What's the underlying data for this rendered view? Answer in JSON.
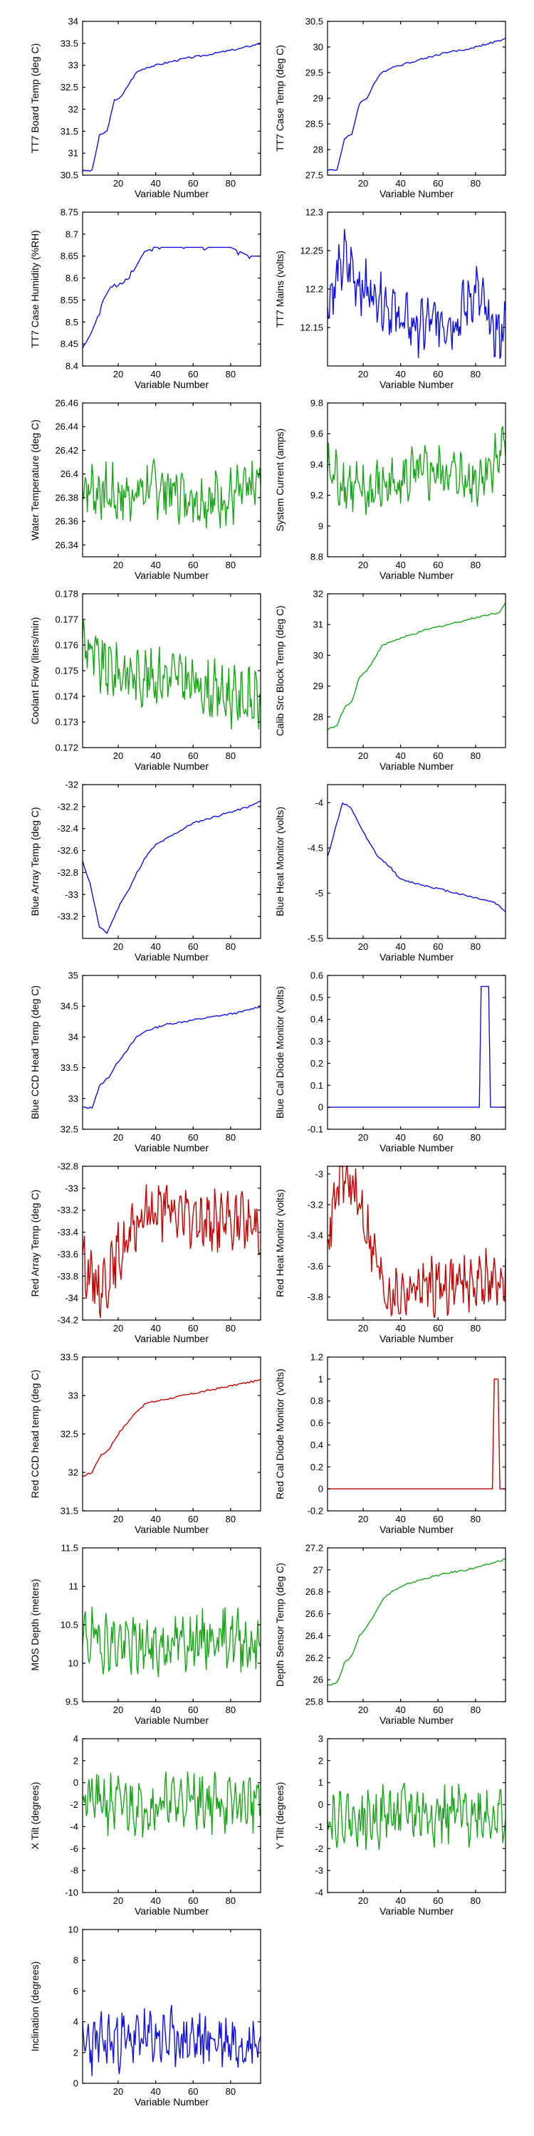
{
  "figure": {
    "colors": {
      "blue": "#1010e6",
      "green": "#1aa51a",
      "red": "#c40000",
      "axis": "#000000"
    }
  },
  "chart_data": [
    {
      "type": "line",
      "ylabel": "TT7 Board Temp (deg C)",
      "xlabel": "Variable Number",
      "xlim": [
        1,
        96
      ],
      "ylim": [
        30.5,
        34
      ],
      "xticks": [
        20,
        40,
        60,
        80
      ],
      "yticks": [
        "30.5",
        "31",
        "31.5",
        "32",
        "32.5",
        "33",
        "33.5",
        "34"
      ],
      "color": "blue",
      "shape": "sawrise",
      "series": [
        {
          "x": [
            1,
            6,
            10,
            14,
            18,
            22,
            26,
            30,
            35,
            45,
            55,
            65,
            75,
            85,
            96
          ],
          "y": [
            30.6,
            30.6,
            31.4,
            31.5,
            32.2,
            32.3,
            32.6,
            32.85,
            32.95,
            33.05,
            33.15,
            33.22,
            33.3,
            33.38,
            33.5
          ]
        }
      ]
    },
    {
      "type": "line",
      "ylabel": "TT7 Case Temp (deg C)",
      "xlabel": "Variable Number",
      "xlim": [
        1,
        96
      ],
      "ylim": [
        27.5,
        30.5
      ],
      "xticks": [
        20,
        40,
        60,
        80
      ],
      "yticks": [
        "27.5",
        "28",
        "28.5",
        "29",
        "29.5",
        "30",
        "30.5"
      ],
      "color": "blue",
      "shape": "sawrise",
      "series": [
        {
          "x": [
            1,
            6,
            10,
            14,
            18,
            22,
            26,
            30,
            35,
            45,
            55,
            65,
            75,
            85,
            96
          ],
          "y": [
            27.6,
            27.6,
            28.2,
            28.3,
            28.9,
            29.0,
            29.3,
            29.5,
            29.6,
            29.7,
            29.8,
            29.9,
            29.95,
            30.05,
            30.15
          ]
        }
      ]
    },
    {
      "type": "line",
      "ylabel": "TT7 Case Humidity (%RH)",
      "xlabel": "Variable Number",
      "xlim": [
        1,
        96
      ],
      "ylim": [
        8.4,
        8.75
      ],
      "xticks": [
        20,
        40,
        60,
        80
      ],
      "yticks": [
        "8.4",
        "8.45",
        "8.5",
        "8.55",
        "8.6",
        "8.65",
        "8.7",
        "8.75"
      ],
      "color": "blue",
      "shape": "steps",
      "series": [
        {
          "x": [
            1,
            5,
            8,
            12,
            16,
            20,
            26,
            30,
            34,
            40,
            50,
            60,
            70,
            80,
            90,
            96
          ],
          "y": [
            8.44,
            8.47,
            8.5,
            8.55,
            8.58,
            8.58,
            8.6,
            8.63,
            8.66,
            8.67,
            8.67,
            8.67,
            8.67,
            8.67,
            8.65,
            8.65
          ]
        }
      ]
    },
    {
      "type": "line",
      "ylabel": "TT7 Mains  (volts)",
      "xlabel": "Variable Number",
      "xlim": [
        1,
        96
      ],
      "ylim": [
        12.1,
        12.3
      ],
      "xticks": [
        20,
        40,
        60,
        80
      ],
      "yticks": [
        "12.15",
        "12.2",
        "12.25",
        "12.3"
      ],
      "color": "blue",
      "shape": "noisy",
      "series": [
        {
          "x": [
            1,
            10,
            20,
            30,
            40,
            50,
            60,
            70,
            80,
            90,
            96
          ],
          "y": [
            12.18,
            12.24,
            12.2,
            12.19,
            12.16,
            12.15,
            12.16,
            12.16,
            12.2,
            12.14,
            12.15
          ]
        }
      ]
    },
    {
      "type": "line",
      "ylabel": "Water Temperature (deg C)",
      "xlabel": "Variable Number",
      "xlim": [
        1,
        96
      ],
      "ylim": [
        26.33,
        26.46
      ],
      "xticks": [
        20,
        40,
        60,
        80
      ],
      "yticks": [
        "26.34",
        "26.36",
        "26.38",
        "26.4",
        "26.42",
        "26.44",
        "26.46"
      ],
      "color": "green",
      "shape": "noisy",
      "series": [
        {
          "x": [
            1,
            20,
            40,
            60,
            80,
            96
          ],
          "y": [
            26.39,
            26.38,
            26.39,
            26.38,
            26.38,
            26.39
          ]
        }
      ]
    },
    {
      "type": "line",
      "ylabel": "System Current (amps)",
      "xlabel": "Variable Number",
      "xlim": [
        1,
        96
      ],
      "ylim": [
        8.8,
        9.8
      ],
      "xticks": [
        20,
        40,
        60,
        80
      ],
      "yticks": [
        "8.8",
        "9",
        "9.2",
        "9.4",
        "9.6",
        "9.8"
      ],
      "color": "green",
      "shape": "noisy",
      "series": [
        {
          "x": [
            1,
            20,
            40,
            60,
            80,
            96
          ],
          "y": [
            9.35,
            9.2,
            9.3,
            9.35,
            9.3,
            9.5
          ]
        }
      ]
    },
    {
      "type": "line",
      "ylabel": "Coolant Flow (liters/min)",
      "xlabel": "Variable Number",
      "xlim": [
        1,
        96
      ],
      "ylim": [
        0.172,
        0.178
      ],
      "xticks": [
        20,
        40,
        60,
        80
      ],
      "yticks": [
        "0.172",
        "0.173",
        "0.174",
        "0.175",
        "0.176",
        "0.177",
        "0.178"
      ],
      "color": "green",
      "shape": "noisy",
      "series": [
        {
          "x": [
            1,
            10,
            30,
            50,
            70,
            96
          ],
          "y": [
            0.1763,
            0.1752,
            0.1748,
            0.1748,
            0.1742,
            0.1738
          ]
        }
      ]
    },
    {
      "type": "line",
      "ylabel": "Calib Src Block Temp (deg C)",
      "xlabel": "Variable Number",
      "xlim": [
        1,
        96
      ],
      "ylim": [
        27,
        32
      ],
      "xticks": [
        20,
        40,
        60,
        80
      ],
      "yticks": [
        "28",
        "29",
        "30",
        "31",
        "32"
      ],
      "color": "green",
      "shape": "sawrise",
      "series": [
        {
          "x": [
            1,
            6,
            10,
            14,
            18,
            22,
            26,
            30,
            35,
            45,
            55,
            65,
            75,
            85,
            93,
            96
          ],
          "y": [
            27.6,
            27.7,
            28.3,
            28.5,
            29.3,
            29.5,
            29.9,
            30.3,
            30.45,
            30.65,
            30.85,
            31.0,
            31.15,
            31.3,
            31.4,
            31.75
          ]
        }
      ]
    },
    {
      "type": "line",
      "ylabel": "Blue Array Temp (deg C)",
      "xlabel": "Variable Number",
      "xlim": [
        1,
        96
      ],
      "ylim": [
        -33.4,
        -32
      ],
      "xticks": [
        20,
        40,
        60,
        80
      ],
      "yticks": [
        "-33.2",
        "-33",
        "-32.8",
        "-32.6",
        "-32.4",
        "-32.2",
        "-32"
      ],
      "color": "blue",
      "shape": "smooth",
      "series": [
        {
          "x": [
            1,
            5,
            10,
            14,
            18,
            22,
            26,
            30,
            35,
            40,
            50,
            60,
            70,
            80,
            90,
            96
          ],
          "y": [
            -32.7,
            -32.9,
            -33.3,
            -33.35,
            -33.2,
            -33.05,
            -32.95,
            -32.8,
            -32.65,
            -32.55,
            -32.45,
            -32.35,
            -32.3,
            -32.25,
            -32.2,
            -32.15
          ]
        }
      ]
    },
    {
      "type": "line",
      "ylabel": "Blue Heat Monitor (volts)",
      "xlabel": "Variable Number",
      "xlim": [
        1,
        96
      ],
      "ylim": [
        -5.5,
        -3.8
      ],
      "xticks": [
        20,
        40,
        60,
        80
      ],
      "yticks": [
        "-5.5",
        "-5",
        "-4.5",
        "-4"
      ],
      "color": "blue",
      "shape": "smooth",
      "series": [
        {
          "x": [
            1,
            5,
            9,
            13,
            17,
            22,
            28,
            34,
            40,
            50,
            60,
            70,
            80,
            90,
            96
          ],
          "y": [
            -4.6,
            -4.3,
            -4.0,
            -4.05,
            -4.2,
            -4.4,
            -4.6,
            -4.7,
            -4.85,
            -4.9,
            -4.95,
            -5.0,
            -5.05,
            -5.1,
            -5.2
          ]
        }
      ]
    },
    {
      "type": "line",
      "ylabel": "Blue CCD Head Temp (deg C)",
      "xlabel": "Variable Number",
      "xlim": [
        1,
        96
      ],
      "ylim": [
        32.5,
        35
      ],
      "xticks": [
        20,
        40,
        60,
        80
      ],
      "yticks": [
        "32.5",
        "33",
        "33.5",
        "34",
        "34.5",
        "35"
      ],
      "color": "blue",
      "shape": "smooth",
      "series": [
        {
          "x": [
            1,
            6,
            10,
            15,
            20,
            25,
            30,
            35,
            45,
            55,
            65,
            75,
            85,
            96
          ],
          "y": [
            32.85,
            32.85,
            33.2,
            33.35,
            33.6,
            33.8,
            34.0,
            34.1,
            34.2,
            34.25,
            34.3,
            34.35,
            34.4,
            34.5
          ]
        }
      ]
    },
    {
      "type": "line",
      "ylabel": "Blue Cal Diode Monitor (volts)",
      "xlabel": "Variable Number",
      "xlim": [
        1,
        96
      ],
      "ylim": [
        -0.1,
        0.6
      ],
      "xticks": [
        20,
        40,
        60,
        80
      ],
      "yticks": [
        "-0.1",
        "0",
        "0.1",
        "0.2",
        "0.3",
        "0.4",
        "0.5",
        "0.6"
      ],
      "color": "blue",
      "shape": "clean",
      "series": [
        {
          "x": [
            1,
            82,
            83,
            84,
            87,
            88,
            96
          ],
          "y": [
            0,
            0,
            0.55,
            0.55,
            0.55,
            0,
            0
          ]
        }
      ]
    },
    {
      "type": "line",
      "ylabel": "Red Array Temp (deg C)",
      "xlabel": "Variable Number",
      "xlim": [
        1,
        96
      ],
      "ylim": [
        -34.2,
        -32.8
      ],
      "xticks": [
        20,
        40,
        60,
        80
      ],
      "yticks": [
        "-34.2",
        "-34",
        "-33.8",
        "-33.6",
        "-33.4",
        "-33.2",
        "-33",
        "-32.8"
      ],
      "color": "red",
      "shape": "noisy",
      "series": [
        {
          "x": [
            1,
            5,
            10,
            15,
            20,
            25,
            30,
            35,
            45,
            55,
            65,
            75,
            85,
            96
          ],
          "y": [
            -33.6,
            -33.8,
            -33.9,
            -33.8,
            -33.6,
            -33.5,
            -33.35,
            -33.2,
            -33.2,
            -33.25,
            -33.3,
            -33.3,
            -33.3,
            -33.35
          ]
        }
      ]
    },
    {
      "type": "line",
      "ylabel": "Red Heat Monitor (volts)",
      "xlabel": "Variable Number",
      "xlim": [
        1,
        96
      ],
      "ylim": [
        -3.95,
        -2.95
      ],
      "xticks": [
        20,
        40,
        60,
        80
      ],
      "yticks": [
        "-3.8",
        "-3.6",
        "-3.4",
        "-3.2",
        "-3"
      ],
      "color": "red",
      "shape": "noisy",
      "series": [
        {
          "x": [
            1,
            5,
            8,
            12,
            16,
            20,
            24,
            28,
            32,
            36,
            45,
            55,
            65,
            75,
            85,
            96
          ],
          "y": [
            -3.4,
            -3.2,
            -3.0,
            -3.05,
            -3.15,
            -3.25,
            -3.45,
            -3.6,
            -3.75,
            -3.8,
            -3.75,
            -3.72,
            -3.72,
            -3.7,
            -3.7,
            -3.7
          ]
        }
      ]
    },
    {
      "type": "line",
      "ylabel": "Red CCD head temp (deg C)",
      "xlabel": "Variable Number",
      "xlim": [
        1,
        96
      ],
      "ylim": [
        31.5,
        33.5
      ],
      "xticks": [
        20,
        40,
        60,
        80
      ],
      "yticks": [
        "31.5",
        "32",
        "32.5",
        "33",
        "33.5"
      ],
      "color": "red",
      "shape": "smooth",
      "series": [
        {
          "x": [
            1,
            6,
            10,
            15,
            20,
            25,
            30,
            35,
            45,
            55,
            65,
            75,
            85,
            96
          ],
          "y": [
            31.95,
            32.0,
            32.2,
            32.3,
            32.5,
            32.65,
            32.8,
            32.9,
            32.95,
            33.0,
            33.05,
            33.1,
            33.15,
            33.2
          ]
        }
      ]
    },
    {
      "type": "line",
      "ylabel": "Red Cal Diode Monitor (volts)",
      "xlabel": "Variable Number",
      "xlim": [
        1,
        96
      ],
      "ylim": [
        -0.2,
        1.2
      ],
      "xticks": [
        20,
        40,
        60,
        80
      ],
      "yticks": [
        "-0.2",
        "0",
        "0.2",
        "0.4",
        "0.6",
        "0.8",
        "1",
        "1.2"
      ],
      "color": "red",
      "shape": "clean",
      "series": [
        {
          "x": [
            1,
            89,
            90,
            92,
            93,
            96
          ],
          "y": [
            0,
            0,
            1.0,
            1.0,
            0,
            0
          ]
        }
      ]
    },
    {
      "type": "line",
      "ylabel": "MOS Depth  (meters)",
      "xlabel": "Variable Number",
      "xlim": [
        1,
        96
      ],
      "ylim": [
        9.5,
        11.5
      ],
      "xticks": [
        20,
        40,
        60,
        80
      ],
      "yticks": [
        "9.5",
        "10",
        "10.5",
        "11",
        "11.5"
      ],
      "color": "green",
      "shape": "noisy",
      "series": [
        {
          "x": [
            1,
            20,
            40,
            60,
            80,
            96
          ],
          "y": [
            10.35,
            10.25,
            10.2,
            10.3,
            10.35,
            10.2
          ]
        }
      ]
    },
    {
      "type": "line",
      "ylabel": "Depth Sensor Temp (deg C)",
      "xlabel": "Variable Number",
      "xlim": [
        1,
        96
      ],
      "ylim": [
        25.8,
        27.2
      ],
      "xticks": [
        20,
        40,
        60,
        80
      ],
      "yticks": [
        "25.8",
        "26",
        "26.2",
        "26.4",
        "26.6",
        "26.8",
        "27",
        "27.2"
      ],
      "color": "green",
      "shape": "sawrise",
      "series": [
        {
          "x": [
            1,
            6,
            10,
            14,
            18,
            22,
            26,
            30,
            35,
            45,
            55,
            65,
            75,
            85,
            96
          ],
          "y": [
            25.95,
            25.97,
            26.15,
            26.22,
            26.4,
            26.48,
            26.6,
            26.72,
            26.8,
            26.88,
            26.93,
            26.97,
            27.0,
            27.04,
            27.1
          ]
        }
      ]
    },
    {
      "type": "line",
      "ylabel": "X Tilt  (degrees)",
      "xlabel": "Variable Number",
      "xlim": [
        1,
        96
      ],
      "ylim": [
        -10,
        4
      ],
      "xticks": [
        20,
        40,
        60,
        80
      ],
      "yticks": [
        "-10",
        "-8",
        "-6",
        "-4",
        "-2",
        "0",
        "2",
        "4"
      ],
      "color": "green",
      "shape": "noisy",
      "series": [
        {
          "x": [
            1,
            20,
            40,
            60,
            80,
            96
          ],
          "y": [
            -1.5,
            -2,
            -2,
            -1.5,
            -2,
            -1.5
          ]
        }
      ]
    },
    {
      "type": "line",
      "ylabel": "Y Tilt  (degrees)",
      "xlabel": "Variable Number",
      "xlim": [
        1,
        96
      ],
      "ylim": [
        -4,
        3
      ],
      "xticks": [
        20,
        40,
        60,
        80
      ],
      "yticks": [
        "-4",
        "-3",
        "-2",
        "-1",
        "0",
        "1",
        "2",
        "3"
      ],
      "color": "green",
      "shape": "noisy",
      "series": [
        {
          "x": [
            1,
            20,
            40,
            60,
            80,
            96
          ],
          "y": [
            -0.5,
            -0.7,
            -0.3,
            -0.5,
            -0.4,
            -0.5
          ]
        }
      ]
    },
    {
      "type": "line",
      "ylabel": "Inclination  (degrees)",
      "xlabel": "Variable Number",
      "xlim": [
        1,
        96
      ],
      "ylim": [
        0,
        10
      ],
      "xticks": [
        20,
        40,
        60,
        80
      ],
      "yticks": [
        "0",
        "2",
        "4",
        "6",
        "8",
        "10"
      ],
      "color": "blue",
      "shape": "noisy",
      "series": [
        {
          "x": [
            1,
            20,
            40,
            60,
            80,
            96
          ],
          "y": [
            2.5,
            2.8,
            3,
            2.8,
            2.8,
            2.8
          ]
        }
      ]
    }
  ]
}
